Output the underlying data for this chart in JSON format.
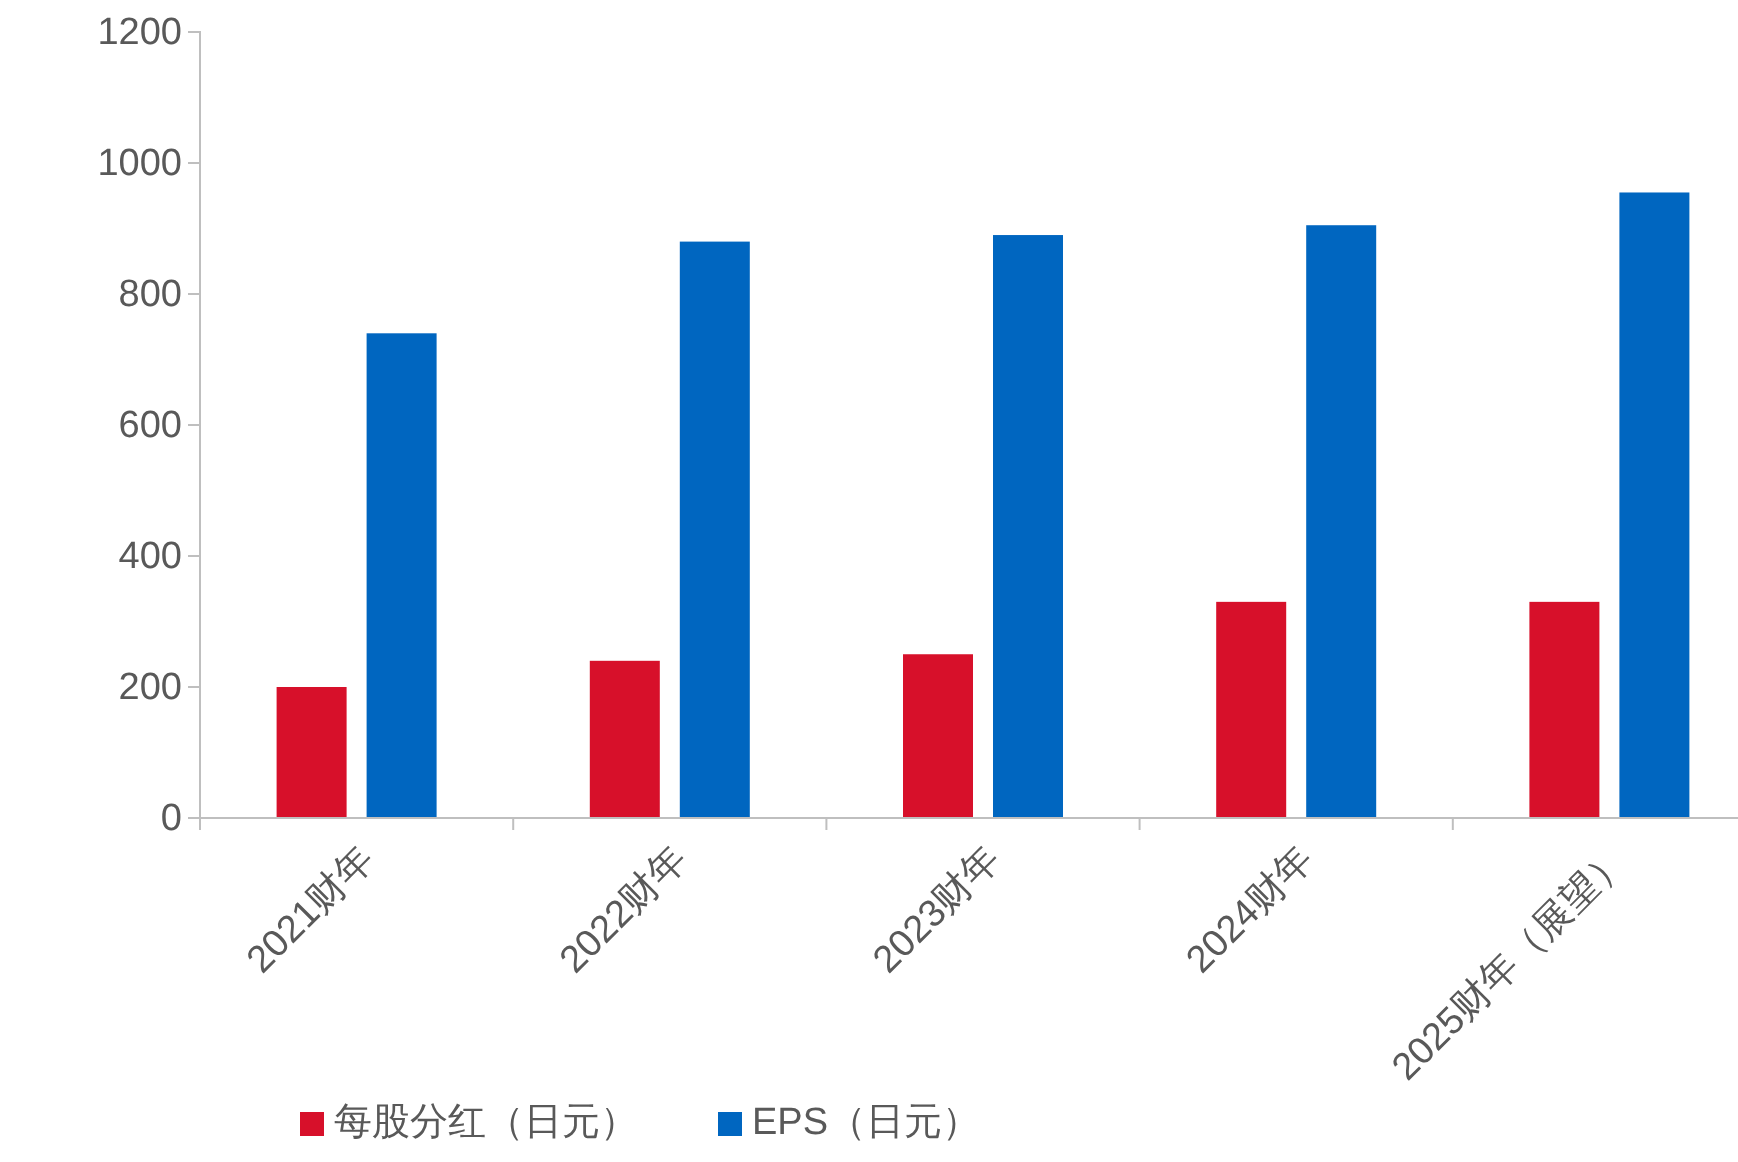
{
  "chart_data": {
    "type": "bar",
    "categories": [
      "2021财年",
      "2022财年",
      "2023财年",
      "2024财年",
      "2025财年（展望）"
    ],
    "series": [
      {
        "name": "每股分红（日元）",
        "color": "#d7102a",
        "values": [
          200,
          240,
          250,
          330,
          330
        ]
      },
      {
        "name": "EPS（日元）",
        "color": "#0066c0",
        "values": [
          740,
          880,
          890,
          905,
          955
        ]
      }
    ],
    "ylim": [
      0,
      1200
    ],
    "yticks": [
      0,
      200,
      400,
      600,
      800,
      1000,
      1200
    ],
    "grid": false,
    "legend": "bottom"
  }
}
